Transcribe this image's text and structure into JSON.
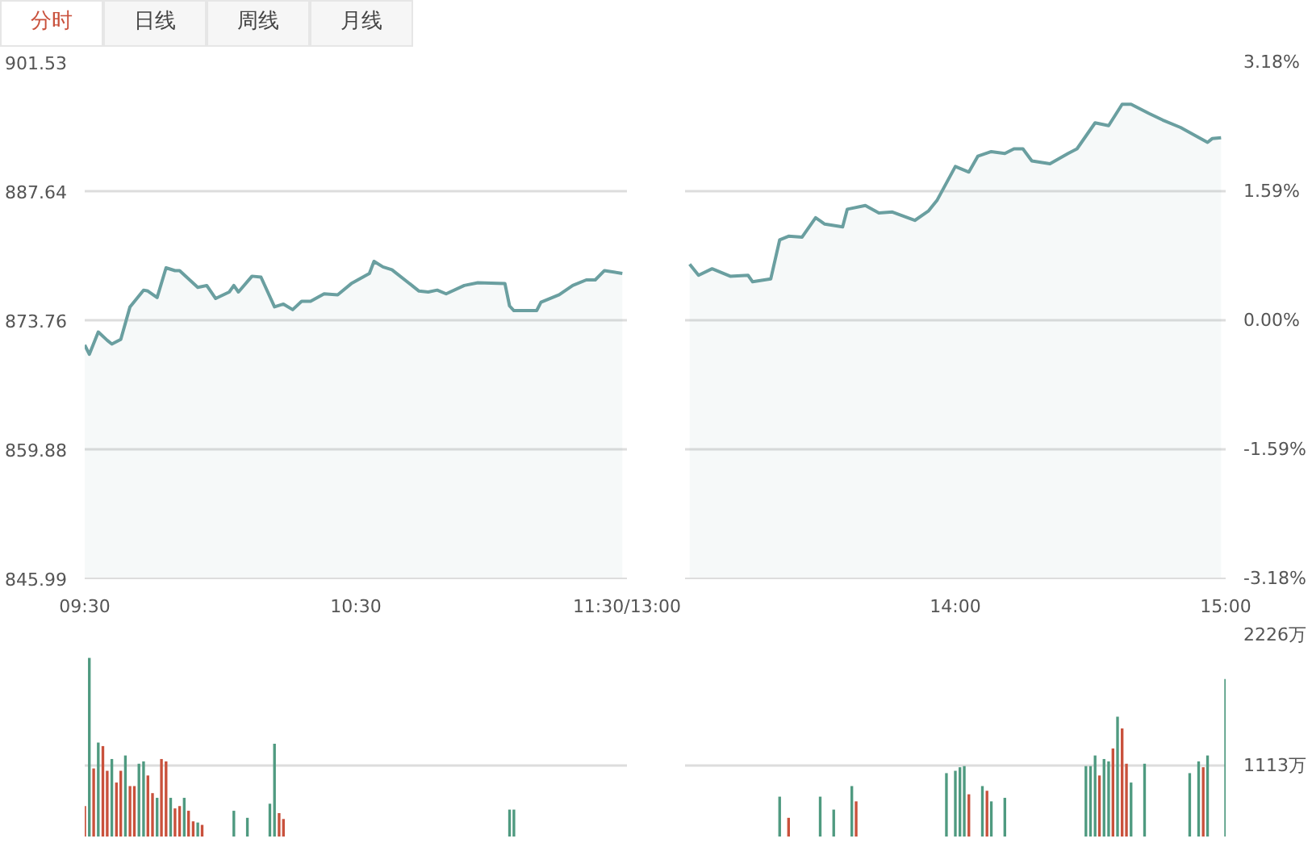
{
  "chart_data": [
    {
      "type": "area",
      "annotations": [
        "分时",
        "日线",
        "周线",
        "月线"
      ],
      "x": [
        9.5,
        9.517,
        9.55,
        9.583,
        9.6,
        9.633,
        9.667,
        9.717,
        9.733,
        9.767,
        9.8,
        9.833,
        9.85,
        9.917,
        9.95,
        9.983,
        10.033,
        10.05,
        10.067,
        10.117,
        10.15,
        10.2,
        10.233,
        10.267,
        10.3,
        10.333,
        10.383,
        10.433,
        10.483,
        10.55,
        10.567,
        10.6,
        10.633,
        10.733,
        10.767,
        10.8,
        10.833,
        10.9,
        10.95,
        11.05,
        11.067,
        11.083,
        11.167,
        11.183,
        11.25,
        11.3,
        11.35,
        11.383,
        11.417,
        11.483
      ],
      "series": [
        {
          "color": "#6a9fa0",
          "values": [
            871.1,
            870.1,
            872.5,
            871.6,
            871.2,
            871.7,
            875.2,
            877.0,
            876.9,
            876.2,
            879.4,
            879.1,
            879.1,
            877.3,
            877.5,
            876.1,
            876.8,
            877.5,
            876.8,
            878.5,
            878.4,
            875.2,
            875.5,
            874.9,
            875.8,
            875.8,
            876.6,
            876.5,
            877.7,
            878.8,
            880.1,
            879.5,
            879.2,
            876.9,
            876.8,
            877.0,
            876.6,
            877.5,
            877.8,
            877.7,
            875.3,
            874.8,
            874.8,
            875.7,
            876.5,
            877.5,
            878.1,
            878.1,
            879.1,
            878.8
          ]
        }
      ],
      "xlim": [
        9.5,
        11.5
      ],
      "xticks": [
        {
          "value": 9.5,
          "label": "09:30"
        },
        {
          "value": 10.5,
          "label": "10:30"
        },
        {
          "value": 11.5,
          "label": "11:30/13:00"
        }
      ],
      "ylim": [
        845.99,
        901.53
      ],
      "yticks": [
        845.99,
        859.88,
        873.76,
        887.64,
        901.53
      ],
      "grid": "y"
    },
    {
      "type": "area",
      "x": [
        13.017,
        13.05,
        13.1,
        13.167,
        13.233,
        13.25,
        13.317,
        13.35,
        13.383,
        13.433,
        13.483,
        13.517,
        13.583,
        13.6,
        13.667,
        13.717,
        13.767,
        13.85,
        13.9,
        13.933,
        14.0,
        14.05,
        14.083,
        14.133,
        14.183,
        14.217,
        14.25,
        14.283,
        14.35,
        14.417,
        14.45,
        14.517,
        14.567,
        14.617,
        14.65,
        14.717,
        14.767,
        14.833,
        14.933,
        14.95,
        14.983
      ],
      "series": [
        {
          "color": "#6a9fa0",
          "values": [
            879.8,
            878.6,
            879.3,
            878.5,
            878.6,
            877.9,
            878.2,
            882.4,
            882.8,
            882.7,
            884.8,
            884.1,
            883.8,
            885.7,
            886.1,
            885.3,
            885.4,
            884.5,
            885.5,
            886.7,
            890.3,
            889.7,
            891.4,
            891.9,
            891.7,
            892.2,
            892.2,
            890.9,
            890.6,
            891.7,
            892.2,
            895.0,
            894.7,
            897.0,
            897.0,
            896.0,
            895.3,
            894.5,
            892.9,
            893.3,
            893.4
          ]
        }
      ],
      "xlim": [
        13,
        15
      ],
      "xticks": [
        {
          "value": 14,
          "label": "14:00"
        },
        {
          "value": 15,
          "label": "15:00"
        }
      ],
      "ylim": [
        845.99,
        901.53
      ],
      "yticks": [
        845.99,
        859.88,
        873.76,
        887.64,
        901.53
      ],
      "y2lim": [
        -3.18,
        3.18
      ],
      "y2ticks": [
        {
          "value": -3.18,
          "label": "-3.18%"
        },
        {
          "value": -1.59,
          "label": "-1.59%"
        },
        {
          "value": 0,
          "label": "0.00%"
        },
        {
          "value": 1.59,
          "label": "1.59%"
        },
        {
          "value": 3.18,
          "label": "3.18%"
        }
      ],
      "tick_labels": "x",
      "grid": "y"
    },
    {
      "type": "bar",
      "x": [
        9.5,
        9.517,
        9.533,
        9.55,
        9.567,
        9.583,
        9.6,
        9.617,
        9.633,
        9.65,
        9.667,
        9.683,
        9.7,
        9.717,
        9.733,
        9.75,
        9.767,
        9.783,
        9.8,
        9.817,
        9.833,
        9.85,
        9.867,
        9.883,
        9.9,
        9.917,
        9.933,
        10.05,
        10.1,
        10.183,
        10.2,
        10.217,
        10.233,
        11.067,
        11.083
      ],
      "values": [
        770,
        2030,
        1090,
        1310,
        1280,
        1070,
        1170,
        970,
        1070,
        1200,
        940,
        940,
        1130,
        1150,
        1030,
        880,
        840,
        1170,
        1150,
        840,
        750,
        770,
        840,
        730,
        640,
        630,
        610,
        730,
        670,
        790,
        1300,
        710,
        660,
        740,
        740
      ],
      "colors": [
        "#c9513c",
        "#4f9a80",
        "#c9513c",
        "#4f9a80",
        "#c9513c",
        "#c9513c",
        "#4f9a80",
        "#c9513c",
        "#c9513c",
        "#4f9a80",
        "#c9513c",
        "#c9513c",
        "#4f9a80",
        "#4f9a80",
        "#c9513c",
        "#c9513c",
        "#4f9a80",
        "#c9513c",
        "#c9513c",
        "#4f9a80",
        "#c9513c",
        "#c9513c",
        "#4f9a80",
        "#c9513c",
        "#c9513c",
        "#4f9a80",
        "#c9513c",
        "#4f9a80",
        "#4f9a80",
        "#4f9a80",
        "#4f9a80",
        "#c9513c",
        "#c9513c",
        "#4f9a80",
        "#4f9a80"
      ],
      "xlim": [
        9.5,
        11.5
      ],
      "ylim": [
        511,
        2226
      ],
      "yticks": [
        1113,
        2226
      ],
      "tick_labels": false,
      "grid": "y"
    },
    {
      "type": "bar",
      "x": [
        13.35,
        13.383,
        13.5,
        13.55,
        13.617,
        13.633,
        13.967,
        14.0,
        14.017,
        14.033,
        14.05,
        14.1,
        14.117,
        14.133,
        14.183,
        14.483,
        14.5,
        14.517,
        14.533,
        14.55,
        14.567,
        14.583,
        14.6,
        14.617,
        14.633,
        14.65,
        14.7,
        14.867,
        14.9,
        14.917,
        14.933,
        15.0
      ],
      "values": [
        850,
        670,
        850,
        740,
        940,
        810,
        1050,
        1070,
        1100,
        1110,
        870,
        940,
        900,
        810,
        840,
        1110,
        1110,
        1200,
        1030,
        1170,
        1150,
        1260,
        1530,
        1430,
        1130,
        970,
        1130,
        1050,
        1150,
        1100,
        1200,
        1850
      ],
      "colors": [
        "#4f9a80",
        "#c9513c",
        "#4f9a80",
        "#4f9a80",
        "#4f9a80",
        "#c9513c",
        "#4f9a80",
        "#4f9a80",
        "#4f9a80",
        "#4f9a80",
        "#c9513c",
        "#4f9a80",
        "#c9513c",
        "#4f9a80",
        "#4f9a80",
        "#4f9a80",
        "#4f9a80",
        "#4f9a80",
        "#c9513c",
        "#4f9a80",
        "#4f9a80",
        "#c9513c",
        "#4f9a80",
        "#c9513c",
        "#c9513c",
        "#4f9a80",
        "#4f9a80",
        "#4f9a80",
        "#4f9a80",
        "#c9513c",
        "#4f9a80",
        "#4f9a80"
      ],
      "xlim": [
        13,
        15
      ],
      "ylim": [
        511,
        2226
      ],
      "yticks": [
        {
          "value": 1113,
          "label": "1113万"
        },
        {
          "value": 2226,
          "label": "2226万"
        }
      ],
      "tick_labels": "y",
      "grid": "y"
    }
  ]
}
